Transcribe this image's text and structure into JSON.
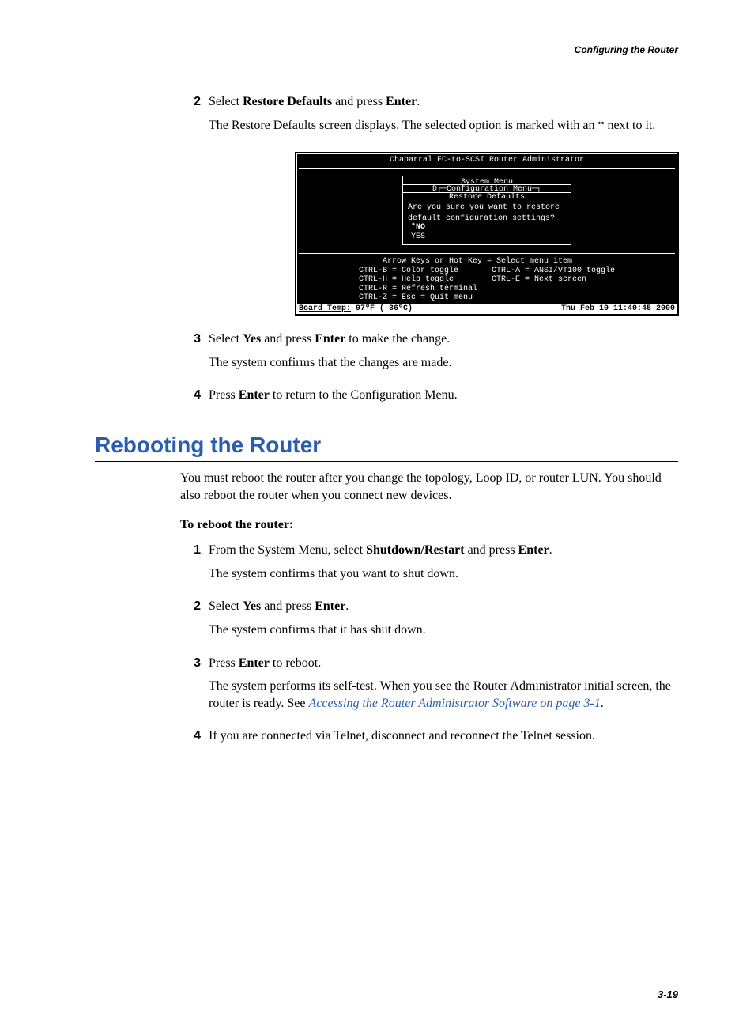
{
  "running_head": "Configuring the Router",
  "page_number": "3-19",
  "colors": {
    "heading": "#2a5db0",
    "link": "#2a5db0",
    "text": "#000000",
    "term_bg": "#000000",
    "term_fg": "#ffffff"
  },
  "pre_steps": {
    "step2": {
      "num": "2",
      "line1_a": "Select ",
      "line1_b_bold": "Restore Defaults",
      "line1_c": " and press ",
      "line1_d_bold": "Enter",
      "line1_e": ".",
      "line2": "The Restore Defaults screen displays. The selected option is marked with an * next to it."
    },
    "step3": {
      "num": "3",
      "line1_a": "Select ",
      "line1_b_bold": "Yes",
      "line1_c": " and press ",
      "line1_d_bold": "Enter",
      "line1_e": " to make the change.",
      "line2": "The system confirms that the changes are made."
    },
    "step4": {
      "num": "4",
      "line1_a": "Press ",
      "line1_b_bold": "Enter",
      "line1_c": " to return to the Configuration Menu."
    }
  },
  "section_heading": "Rebooting the Router",
  "section_intro": "You must reboot the router after you change the topology, Loop ID, or router LUN. You should also reboot the router when you connect new devices.",
  "sub_heading": "To reboot the router:",
  "reboot_steps": {
    "step1": {
      "num": "1",
      "line1_a": "From the System Menu, select ",
      "line1_b_bold": "Shutdown/Restart",
      "line1_c": " and press ",
      "line1_d_bold": "Enter",
      "line1_e": ".",
      "line2": "The system confirms that you want to shut down."
    },
    "step2": {
      "num": "2",
      "line1_a": "Select ",
      "line1_b_bold": "Yes",
      "line1_c": " and press ",
      "line1_d_bold": "Enter",
      "line1_e": ".",
      "line2": "The system confirms that it has shut down."
    },
    "step3": {
      "num": "3",
      "line1_a": "Press ",
      "line1_b_bold": "Enter",
      "line1_c": " to reboot.",
      "line2_a": "The system performs its self-test. When you see the Router Administrator initial screen, the router is ready. See ",
      "line2_link": "Accessing the Router Administrator Software on page 3-1",
      "line2_c": "."
    },
    "step4": {
      "num": "4",
      "line1": "If you are connected via Telnet, disconnect and reconnect the Telnet session."
    }
  },
  "terminal": {
    "title": "Chaparral FC-to-SCSI Router Administrator",
    "menu_layers": {
      "l1": "System Menu",
      "l2_prefix": "D",
      "l2": "Configuration Menu",
      "l3": "Restore Defaults"
    },
    "question_l1": "Are you sure you want to restore",
    "question_l2": "default configuration settings?",
    "opt_no": "*NO",
    "opt_yes": " YES",
    "help": "     Arrow Keys or Hot Key = Select menu item\nCTRL-B = Color toggle       CTRL-A = ANSI/VT100 toggle\nCTRL-H = Help toggle        CTRL-E = Next screen\nCTRL-R = Refresh terminal\nCTRL-Z = Esc = Quit menu",
    "status_left_label": "Board Temp:",
    "status_left_val": "  97ºF ( 36ºC)",
    "status_right": "Thu Feb 10 11:40:45 2000"
  }
}
